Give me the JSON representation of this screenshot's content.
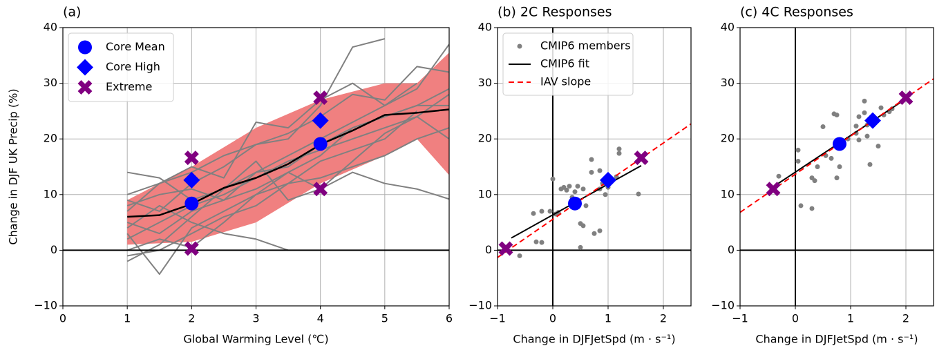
{
  "chart_data": [
    {
      "type": "line",
      "title": "(a)",
      "xlabel": "Global Warming Level (℃)",
      "ylabel": "Change in DJF UK Precip (%)",
      "xlim": [
        0,
        6
      ],
      "ylim": [
        -10,
        40
      ],
      "xticks": [
        0,
        1,
        2,
        3,
        4,
        5,
        6
      ],
      "yticks": [
        {
          "value": -10,
          "label": "−10"
        },
        0,
        10,
        20,
        30,
        40
      ],
      "grid": true,
      "hline": 0,
      "legend": "upper left",
      "series": [
        {
          "kind": "band",
          "color": "#f08080",
          "x": [
            1,
            2,
            3,
            4,
            5,
            5.5,
            6
          ],
          "lower": [
            1,
            1.5,
            5,
            12,
            17,
            20,
            13.5
          ],
          "upper": [
            9,
            15,
            22,
            27,
            30,
            30,
            35.5
          ]
        },
        {
          "kind": "line",
          "color": "#808080",
          "x": [
            1,
            1.5,
            2,
            2.5,
            3,
            3.5,
            4,
            4.5,
            5,
            5.5,
            6
          ],
          "values": [
            5,
            3,
            7,
            9,
            11,
            14,
            17,
            22,
            24,
            26,
            29
          ]
        },
        {
          "kind": "line",
          "color": "#808080",
          "x": [
            1,
            1.5,
            2,
            2.5,
            3,
            3.5,
            4,
            4.5,
            5,
            5.5,
            6
          ],
          "values": [
            9,
            7,
            12,
            15,
            19,
            20,
            26,
            36.5,
            38,
            null,
            null
          ]
        },
        {
          "kind": "line",
          "color": "#808080",
          "x": [
            1,
            1.5,
            2,
            2.5,
            3,
            3.5,
            4,
            4.5,
            5,
            5.5,
            6
          ],
          "values": [
            14,
            13,
            9,
            11,
            14,
            17,
            20,
            23,
            26,
            29,
            37
          ]
        },
        {
          "kind": "line",
          "color": "#808080",
          "x": [
            1,
            1.5,
            2,
            2.5,
            3,
            3.5,
            4,
            4.5,
            5,
            5.5,
            6
          ],
          "values": [
            3,
            -4.3,
            4,
            7,
            10,
            12,
            16,
            18,
            20,
            25,
            null
          ]
        },
        {
          "kind": "line",
          "color": "#808080",
          "x": [
            1,
            1.5,
            2,
            2.5,
            3,
            3.5,
            4,
            4.5,
            5,
            5.5,
            6
          ],
          "values": [
            -2,
            1,
            6,
            11,
            16,
            9,
            11,
            14,
            12,
            11,
            9.2
          ]
        },
        {
          "kind": "line",
          "color": "#808080",
          "x": [
            1,
            1.5,
            2,
            2.5,
            3,
            3.5,
            4,
            4.5,
            5,
            5.5,
            6
          ],
          "values": [
            7,
            12,
            15,
            13,
            23,
            22,
            27,
            30,
            26,
            30,
            null
          ]
        },
        {
          "kind": "line",
          "color": "#808080",
          "x": [
            1,
            1.5,
            2,
            2.5,
            3,
            3.5,
            4,
            4.5,
            5,
            5.5,
            6
          ],
          "values": [
            0,
            2,
            0.5,
            5,
            10,
            14,
            11,
            16,
            21,
            24,
            28
          ]
        },
        {
          "kind": "line",
          "color": "#808080",
          "x": [
            1,
            1.5,
            2,
            2.5,
            3,
            3.5,
            4,
            4.5,
            5,
            5.5,
            6
          ],
          "values": [
            4,
            8,
            5,
            3,
            2,
            0,
            null,
            null,
            null,
            null,
            null
          ]
        },
        {
          "kind": "line",
          "color": "#808080",
          "x": [
            1,
            1.5,
            2,
            2.5,
            3,
            3.5,
            4,
            4.5,
            5,
            5.5,
            6
          ],
          "values": [
            10,
            12,
            14,
            17,
            19,
            21,
            24,
            28,
            27,
            33,
            32
          ]
        },
        {
          "kind": "line",
          "color": "#808080",
          "x": [
            1,
            1.5,
            2,
            2.5,
            3,
            3.5,
            4,
            4.5,
            5,
            5.5,
            6
          ],
          "values": [
            2,
            5,
            8,
            10,
            13,
            16,
            18,
            20,
            22,
            24,
            20
          ]
        },
        {
          "kind": "line",
          "color": "#808080",
          "x": [
            1,
            1.5,
            2,
            2.5,
            3,
            3.5,
            4,
            4.5,
            5,
            5.5,
            6
          ],
          "values": [
            8,
            10,
            11,
            9,
            14,
            15,
            19,
            22,
            24,
            26,
            26
          ]
        },
        {
          "kind": "line",
          "color": "#808080",
          "x": [
            1,
            1.5,
            2,
            2.5,
            3,
            3.5,
            4,
            4.5,
            5,
            5.5,
            6
          ],
          "values": [
            -1,
            0,
            3,
            6,
            8,
            12,
            13,
            15,
            17,
            20,
            22
          ]
        },
        {
          "kind": "line",
          "color": "#000000",
          "width": 2.5,
          "x": [
            1,
            1.5,
            2,
            2.5,
            3,
            3.5,
            4,
            4.5,
            5,
            5.5,
            6
          ],
          "values": [
            6,
            6.3,
            8.3,
            11.2,
            13,
            15.5,
            19,
            21.5,
            24.3,
            24.7,
            25.3
          ]
        },
        {
          "kind": "marker",
          "marker": "circle",
          "name": "Core Mean",
          "color": "#0000ff",
          "x": [
            2,
            4
          ],
          "values": [
            8.4,
            19.1
          ]
        },
        {
          "kind": "marker",
          "marker": "diamond",
          "name": "Core High",
          "color": "#0000ff",
          "x": [
            2,
            4
          ],
          "values": [
            12.6,
            23.3
          ]
        },
        {
          "kind": "marker",
          "marker": "x",
          "name": "Extreme",
          "color": "#800080",
          "x": [
            2,
            2,
            4,
            4
          ],
          "values": [
            16.6,
            0.3,
            27.4,
            11
          ]
        }
      ]
    },
    {
      "type": "scatter",
      "title": "(b) 2C Responses",
      "xlabel": "Change in DJFJetSpd (m · s⁻¹)",
      "xlim": [
        -1,
        2.5
      ],
      "ylim": [
        -10,
        40
      ],
      "xticks": [
        {
          "value": -1,
          "label": "−1"
        },
        0,
        1,
        2
      ],
      "yticks": [
        {
          "value": -10,
          "label": "−10"
        },
        0,
        10,
        20,
        30,
        40
      ],
      "grid": true,
      "hline": 0,
      "vline": 0,
      "legend": "upper left",
      "series": [
        {
          "kind": "scatter",
          "name": "CMIP6 members",
          "color": "#808080",
          "x": [
            -0.6,
            -0.35,
            -0.3,
            -0.2,
            -0.2,
            -0.05,
            0,
            0.05,
            0.1,
            0.15,
            0.2,
            0.25,
            0.3,
            0.35,
            0.4,
            0.45,
            0.5,
            0.5,
            0.55,
            0.55,
            0.6,
            0.7,
            0.7,
            0.75,
            0.85,
            0.85,
            0.95,
            1.0,
            1.15,
            1.2,
            1.2,
            1.55,
            0.85,
            0.9
          ],
          "values": [
            -1,
            6.6,
            1.5,
            1.4,
            7,
            7,
            12.8,
            6.5,
            6.8,
            11,
            11.3,
            10.8,
            11.5,
            9.5,
            10.5,
            11.5,
            0.5,
            4.8,
            4.4,
            11,
            8,
            16.3,
            14,
            3,
            3.5,
            14.3,
            10,
            11.3,
            13.2,
            17.4,
            18.2,
            10.1,
            11,
            12
          ]
        },
        {
          "kind": "line",
          "name": "CMIP6 fit",
          "color": "#000000",
          "width": 2,
          "x": [
            -0.75,
            1.6
          ],
          "values": [
            2.2,
            15.2
          ]
        },
        {
          "kind": "line",
          "name": "IAV slope",
          "color": "#ff0000",
          "dashed": true,
          "width": 2,
          "x": [
            -1,
            2.5
          ],
          "values": [
            -1.3,
            22.7
          ]
        },
        {
          "kind": "marker",
          "marker": "circle",
          "color": "#0000ff",
          "x": [
            0.4
          ],
          "values": [
            8.4
          ]
        },
        {
          "kind": "marker",
          "marker": "diamond",
          "color": "#0000ff",
          "x": [
            1
          ],
          "values": [
            12.6
          ]
        },
        {
          "kind": "marker",
          "marker": "x",
          "color": "#800080",
          "x": [
            -0.85,
            1.6
          ],
          "values": [
            0.3,
            16.6
          ]
        }
      ]
    },
    {
      "type": "scatter",
      "title": "(c) 4C Responses",
      "xlabel": "Change in DJFJetSpd (m · s⁻¹)",
      "xlim": [
        -1,
        2.5
      ],
      "ylim": [
        -10,
        40
      ],
      "xticks": [
        {
          "value": -1,
          "label": "−1"
        },
        0,
        1,
        2
      ],
      "yticks": [
        {
          "value": -10,
          "label": "−10"
        },
        0,
        10,
        20,
        30,
        40
      ],
      "grid": true,
      "hline": 0,
      "vline": 0,
      "series": [
        {
          "kind": "scatter",
          "color": "#808080",
          "x": [
            -0.3,
            0.05,
            0.05,
            0.1,
            0.3,
            0.3,
            0.35,
            0.4,
            0.5,
            0.55,
            0.65,
            0.7,
            0.75,
            0.75,
            0.8,
            0.95,
            1.1,
            1.1,
            1.15,
            1.15,
            1.25,
            1.25,
            1.3,
            1.3,
            1.35,
            1.5,
            1.55,
            1.7,
            1.75,
            1.6
          ],
          "values": [
            13.3,
            16,
            18,
            8,
            7.5,
            13,
            12.5,
            15,
            22.2,
            17,
            16.5,
            24.5,
            13,
            24.3,
            15,
            20,
            21,
            22.3,
            19.8,
            24,
            24.7,
            26.8,
            20.5,
            22.5,
            15.4,
            18.7,
            25.6,
            24.9,
            25.4,
            24.3
          ]
        },
        {
          "kind": "line",
          "color": "#000000",
          "width": 2,
          "x": [
            -0.4,
            2
          ],
          "values": [
            11.4,
            27.2
          ]
        },
        {
          "kind": "line",
          "color": "#ff0000",
          "dashed": true,
          "width": 2,
          "x": [
            -1,
            2.5
          ],
          "values": [
            6.8,
            30.8
          ]
        },
        {
          "kind": "marker",
          "marker": "circle",
          "color": "#0000ff",
          "x": [
            0.8
          ],
          "values": [
            19.1
          ]
        },
        {
          "kind": "marker",
          "marker": "diamond",
          "color": "#0000ff",
          "x": [
            1.4
          ],
          "values": [
            23.3
          ]
        },
        {
          "kind": "marker",
          "marker": "x",
          "color": "#800080",
          "x": [
            -0.4,
            2
          ],
          "values": [
            11,
            27.4
          ]
        }
      ]
    }
  ]
}
